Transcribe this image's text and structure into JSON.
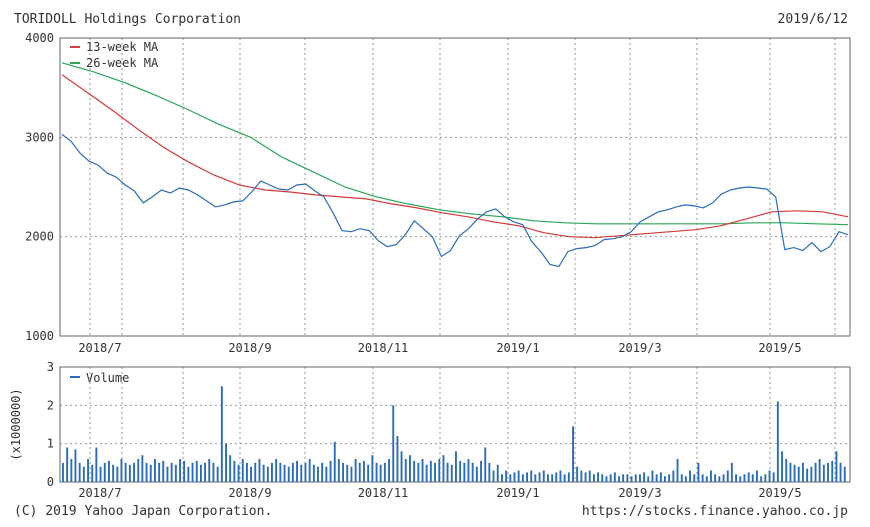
{
  "header": {
    "company": "TORIDOLL Holdings Corporation",
    "date": "2019/6/12"
  },
  "footer": {
    "copyright": "(C) 2019 Yahoo Japan Corporation.",
    "url": "https://stocks.finance.yahoo.co.jp"
  },
  "colors": {
    "price": "#2b6cb8",
    "ma13": "#d43a3a",
    "ma26": "#2aa55a",
    "volume": "#2b6cb8",
    "grid": "#999999"
  },
  "chart_data": [
    {
      "type": "line",
      "xlabel_ticks": [
        "2018/7",
        "2018/9",
        "2018/11",
        "2019/1",
        "2019/3",
        "2019/5"
      ],
      "yticks": [
        1000,
        2000,
        3000,
        4000
      ],
      "ylim": [
        1000,
        4000
      ],
      "grid": true,
      "legend": "top-left",
      "legend_entries": [
        "13-week MA",
        "26-week MA"
      ],
      "series": [
        {
          "name": "",
          "role": "price",
          "values": [
            3030,
            2960,
            2840,
            2760,
            2720,
            2640,
            2600,
            2520,
            2460,
            2340,
            2400,
            2470,
            2440,
            2490,
            2470,
            2420,
            2360,
            2300,
            2320,
            2350,
            2360,
            2450,
            2560,
            2520,
            2480,
            2470,
            2520,
            2530,
            2460,
            2400,
            2240,
            2060,
            2050,
            2080,
            2060,
            1960,
            1900,
            1920,
            2020,
            2160,
            2080,
            2000,
            1800,
            1860,
            2010,
            2080,
            2180,
            2250,
            2280,
            2200,
            2150,
            2120,
            1950,
            1850,
            1720,
            1700,
            1850,
            1880,
            1890,
            1910,
            1970,
            1980,
            2000,
            2050,
            2150,
            2200,
            2250,
            2270,
            2300,
            2320,
            2310,
            2290,
            2340,
            2430,
            2470,
            2490,
            2500,
            2490,
            2480,
            2400,
            1870,
            1890,
            1860,
            1940,
            1850,
            1900,
            2050,
            2020
          ]
        },
        {
          "name": "13-week MA",
          "role": "ma13",
          "values": [
            3630,
            3450,
            3270,
            3080,
            2900,
            2750,
            2620,
            2520,
            2470,
            2450,
            2420,
            2400,
            2380,
            2330,
            2290,
            2240,
            2200,
            2150,
            2110,
            2040,
            2000,
            1990,
            2010,
            2030,
            2050,
            2070,
            2110,
            2180,
            2250,
            2260,
            2250,
            2200
          ]
        },
        {
          "name": "26-week MA",
          "role": "ma26",
          "values": [
            3750,
            3660,
            3550,
            3420,
            3280,
            3130,
            3000,
            2800,
            2650,
            2500,
            2400,
            2330,
            2270,
            2230,
            2200,
            2160,
            2140,
            2130,
            2130,
            2130,
            2130,
            2130,
            2140,
            2140,
            2130,
            2120
          ]
        }
      ]
    },
    {
      "type": "bar",
      "legend_entries": [
        "Volume"
      ],
      "ylabel": "(x1000000)",
      "yticks": [
        0,
        1,
        2,
        3
      ],
      "ylim": [
        0,
        3
      ],
      "xlabel_ticks": [
        "2018/7",
        "2018/9",
        "2018/11",
        "2019/1",
        "2019/3",
        "2019/5"
      ],
      "series": [
        {
          "name": "Volume",
          "values": [
            0.5,
            0.9,
            0.6,
            0.85,
            0.5,
            0.4,
            0.6,
            0.45,
            0.9,
            0.4,
            0.5,
            0.55,
            0.45,
            0.4,
            0.6,
            0.5,
            0.45,
            0.5,
            0.6,
            0.7,
            0.5,
            0.45,
            0.6,
            0.5,
            0.55,
            0.4,
            0.5,
            0.45,
            0.6,
            0.55,
            0.4,
            0.5,
            0.55,
            0.45,
            0.5,
            0.6,
            0.5,
            0.4,
            2.5,
            1.0,
            0.7,
            0.55,
            0.45,
            0.6,
            0.5,
            0.4,
            0.5,
            0.6,
            0.45,
            0.4,
            0.5,
            0.6,
            0.5,
            0.45,
            0.4,
            0.5,
            0.55,
            0.45,
            0.5,
            0.6,
            0.45,
            0.4,
            0.5,
            0.4,
            0.55,
            1.05,
            0.6,
            0.5,
            0.45,
            0.4,
            0.6,
            0.5,
            0.55,
            0.45,
            0.7,
            0.5,
            0.45,
            0.5,
            0.6,
            2.0,
            1.2,
            0.8,
            0.6,
            0.7,
            0.55,
            0.5,
            0.6,
            0.45,
            0.55,
            0.5,
            0.6,
            0.7,
            0.5,
            0.45,
            0.8,
            0.55,
            0.5,
            0.6,
            0.5,
            0.4,
            0.55,
            0.9,
            0.5,
            0.3,
            0.45,
            0.2,
            0.3,
            0.2,
            0.25,
            0.3,
            0.2,
            0.25,
            0.3,
            0.2,
            0.25,
            0.3,
            0.2,
            0.2,
            0.25,
            0.3,
            0.2,
            0.25,
            1.45,
            0.4,
            0.3,
            0.25,
            0.3,
            0.2,
            0.25,
            0.2,
            0.15,
            0.2,
            0.25,
            0.15,
            0.2,
            0.2,
            0.15,
            0.2,
            0.2,
            0.25,
            0.15,
            0.3,
            0.2,
            0.25,
            0.15,
            0.2,
            0.3,
            0.6,
            0.2,
            0.15,
            0.3,
            0.2,
            0.5,
            0.2,
            0.15,
            0.3,
            0.2,
            0.15,
            0.2,
            0.3,
            0.5,
            0.2,
            0.15,
            0.2,
            0.25,
            0.2,
            0.3,
            0.15,
            0.2,
            0.3,
            0.25,
            2.1,
            0.8,
            0.6,
            0.5,
            0.45,
            0.4,
            0.5,
            0.35,
            0.4,
            0.5,
            0.6,
            0.45,
            0.5,
            0.55,
            0.8,
            0.5,
            0.4
          ]
        }
      ]
    }
  ]
}
